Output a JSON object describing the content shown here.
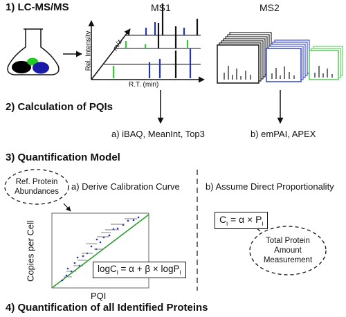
{
  "step1": {
    "title": "1) LC-MS/MS",
    "ms1_label": "MS1",
    "ms2_label": "MS2"
  },
  "ms1_plot": {
    "y_axis_label": "Rel. Intensity",
    "z_axis_label": "m/z",
    "x_axis_label": "R.T. (min)"
  },
  "step2": {
    "title": "2) Calculation of PQIs",
    "methods_a": "a) iBAQ, MeanInt, Top3",
    "methods_b": "b) emPAI, APEX"
  },
  "step3": {
    "title": "3) Quantification Model",
    "bubble_ref": [
      "Ref. Protein",
      "Abundances"
    ],
    "option_a": "a) Derive Calibration Curve",
    "option_b": "b) Assume Direct Proportionality",
    "formula_b": {
      "lhs": "C",
      "lhs_sub": "i",
      "rhs": " = α × P",
      "rhs_sub": "i"
    },
    "formula_a": {
      "lhs": "logC",
      "lhs_sub": "i",
      "rhs": " = α + β × logP",
      "rhs_sub": "i"
    },
    "bubble_total": [
      "Total Protein",
      "Amount",
      "Measurement"
    ],
    "calib_plot": {
      "y_axis_label": "Copies per Cell",
      "x_axis_label": "PQI"
    }
  },
  "step4": {
    "title": "4) Quantification of all Identified Proteins"
  },
  "colors": {
    "blue": "#2233bb",
    "green": "#33cc33",
    "ms2_black": "#111111",
    "ms2_blue": "#3344cc",
    "ms2_green": "#55cc55",
    "fit_line": "#2a9a2a"
  }
}
